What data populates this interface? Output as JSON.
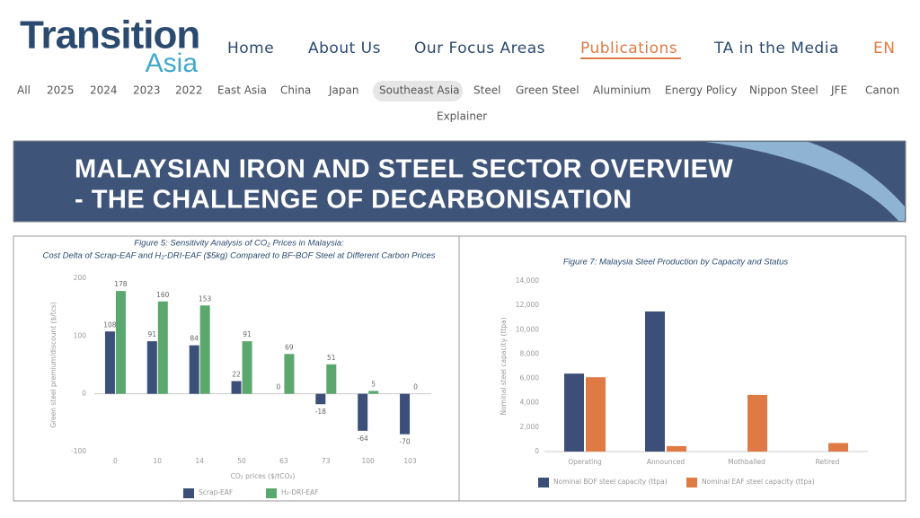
{
  "header": {
    "logo": {
      "word1": "Transition",
      "word2": "Asia"
    },
    "nav": [
      "Home",
      "About Us",
      "Our Focus Areas",
      "Publications",
      "TA in the Media",
      "EN"
    ]
  },
  "filters": [
    "All",
    "2025",
    "2024",
    "2023",
    "2022",
    "East Asia",
    "China",
    "Japan",
    "Southeast Asia",
    "Steel",
    "Green Steel",
    "Aluminium",
    "Energy Policy",
    "Nippon Steel",
    "JFE",
    "Canon",
    "Explainer"
  ],
  "banner": {
    "title": [
      "MALAYSIAN IRON AND STEEL SECTOR OVERVIEW",
      "- THE CHALLENGE OF DECARBONISATION"
    ]
  },
  "chart_data": [
    {
      "type": "bar",
      "title": "Figure 5: Sensitivity Analysis of CO₂ Prices in Malaysia:",
      "subtitle": "Cost Delta of Scrap-EAF and H₂-DRI-EAF ($5kg) Compared to BF-BOF Steel at Different Carbon Prices",
      "x_label": "CO₂ prices ($/tCO₂)",
      "y_label": "Green steel premium/discount ($/tcs)",
      "categories": [
        "0",
        "10",
        "14",
        "50",
        "63",
        "73",
        "100",
        "103"
      ],
      "series": [
        {
          "name": "Scrap-EAF",
          "color": "#3b4f78",
          "values": [
            108,
            91,
            84,
            22,
            0,
            -18,
            -64,
            -70
          ]
        },
        {
          "name": "H₂-DRI-EAF",
          "color": "#5ba86f",
          "values": [
            178,
            160,
            153,
            91,
            69,
            51,
            5,
            0
          ]
        }
      ],
      "ylim": [
        -100,
        200
      ],
      "yticks": [
        -100,
        0,
        100,
        200
      ],
      "grid": false,
      "data_labels": true
    },
    {
      "type": "bar",
      "title": "Figure 7: Malaysia Steel Production by Capacity and Status",
      "y_label": "Nominal steel capacity (ttpa)",
      "categories": [
        "Operating",
        "Announced",
        "Mothballed",
        "Retired"
      ],
      "series": [
        {
          "name": "Nominal BOF steel capacity (ttpa)",
          "color": "#3b4f78",
          "values": [
            6400,
            11500,
            0,
            0
          ]
        },
        {
          "name": "Nominal EAF steel capacity (ttpa)",
          "color": "#e07a44",
          "values": [
            6100,
            450,
            4650,
            700
          ]
        }
      ],
      "ylim": [
        0,
        14000
      ],
      "yticks": [
        0,
        {
          "value": 2000,
          "label": "2,000"
        },
        {
          "value": 4000,
          "label": "4,000"
        },
        {
          "value": 6000,
          "label": "6,000"
        },
        {
          "value": 8000,
          "label": "8,000"
        },
        {
          "value": 10000,
          "label": "10,000"
        },
        {
          "value": 12000,
          "label": "12,000"
        },
        {
          "value": 14000,
          "label": "14,000"
        }
      ],
      "grid": false,
      "data_labels": false
    }
  ]
}
